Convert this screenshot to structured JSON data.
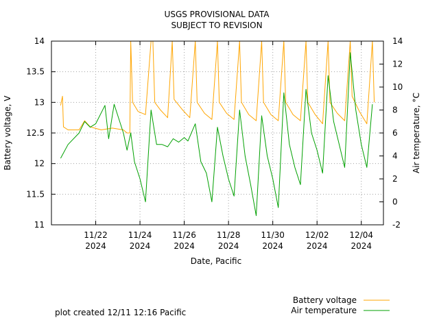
{
  "chart_data": {
    "type": "line",
    "title": "USGS PROVISIONAL DATA",
    "subtitle": "SUBJECT TO REVISION",
    "xlabel": "Date, Pacific",
    "ylabel": "Battery voltage, V",
    "y2label": "Air temperature, °C",
    "xlim": [
      "2024-11-20T00:00",
      "2024-12-05T00:00"
    ],
    "ylim": [
      11,
      14
    ],
    "y2lim": [
      -2,
      14
    ],
    "yticks": [
      "11",
      "11.5",
      "12",
      "12.5",
      "13",
      "13.5",
      "14"
    ],
    "y2ticks": [
      "-2",
      "0",
      "2",
      "4",
      "6",
      "8",
      "10",
      "12",
      "14"
    ],
    "xticks": [
      {
        "date": "2024-11-22",
        "line1": "11/22",
        "line2": "2024"
      },
      {
        "date": "2024-11-24",
        "line1": "11/24",
        "line2": "2024"
      },
      {
        "date": "2024-11-26",
        "line1": "11/26",
        "line2": "2024"
      },
      {
        "date": "2024-11-28",
        "line1": "11/28",
        "line2": "2024"
      },
      {
        "date": "2024-11-30",
        "line1": "11/30",
        "line2": "2024"
      },
      {
        "date": "2024-12-02",
        "line1": "12/02",
        "line2": "2024"
      },
      {
        "date": "2024-12-04",
        "line1": "12/04",
        "line2": "2024"
      }
    ],
    "grid": true,
    "legend_position": "bottom-right",
    "series": [
      {
        "name": "Battery voltage",
        "axis": "left",
        "color": "#ffa500",
        "points": [
          [
            "2024-11-20T10:00",
            12.95
          ],
          [
            "2024-11-20T12:00",
            13.1
          ],
          [
            "2024-11-20T13:00",
            12.6
          ],
          [
            "2024-11-20T18:00",
            12.55
          ],
          [
            "2024-11-21T06:00",
            12.55
          ],
          [
            "2024-11-21T12:00",
            12.7
          ],
          [
            "2024-11-21T18:00",
            12.6
          ],
          [
            "2024-11-22T06:00",
            12.55
          ],
          [
            "2024-11-22T18:00",
            12.58
          ],
          [
            "2024-11-23T06:00",
            12.55
          ],
          [
            "2024-11-23T10:00",
            12.5
          ],
          [
            "2024-11-23T13:00",
            12.5
          ],
          [
            "2024-11-23T14:00",
            14.0
          ],
          [
            "2024-11-23T16:00",
            13.0
          ],
          [
            "2024-11-23T22:00",
            12.85
          ],
          [
            "2024-11-24T06:00",
            12.8
          ],
          [
            "2024-11-24T12:00",
            14.0
          ],
          [
            "2024-11-24T14:00",
            14.0
          ],
          [
            "2024-11-24T16:00",
            13.0
          ],
          [
            "2024-11-24T22:00",
            12.88
          ],
          [
            "2024-11-25T06:00",
            12.75
          ],
          [
            "2024-11-25T11:00",
            14.0
          ],
          [
            "2024-11-25T13:00",
            13.05
          ],
          [
            "2024-11-25T22:00",
            12.88
          ],
          [
            "2024-11-26T06:00",
            12.75
          ],
          [
            "2024-11-26T12:00",
            14.0
          ],
          [
            "2024-11-26T14:00",
            13.0
          ],
          [
            "2024-11-26T22:00",
            12.82
          ],
          [
            "2024-11-27T06:00",
            12.72
          ],
          [
            "2024-11-27T12:00",
            14.0
          ],
          [
            "2024-11-27T14:00",
            13.0
          ],
          [
            "2024-11-27T22:00",
            12.82
          ],
          [
            "2024-11-28T06:00",
            12.72
          ],
          [
            "2024-11-28T12:00",
            14.0
          ],
          [
            "2024-11-28T14:00",
            13.0
          ],
          [
            "2024-11-28T22:00",
            12.8
          ],
          [
            "2024-11-29T06:00",
            12.7
          ],
          [
            "2024-11-29T12:00",
            14.0
          ],
          [
            "2024-11-29T14:00",
            13.0
          ],
          [
            "2024-11-29T22:00",
            12.8
          ],
          [
            "2024-11-30T06:00",
            12.7
          ],
          [
            "2024-11-30T12:00",
            14.0
          ],
          [
            "2024-11-30T14:00",
            13.0
          ],
          [
            "2024-11-30T22:00",
            12.8
          ],
          [
            "2024-12-01T06:00",
            12.7
          ],
          [
            "2024-12-01T12:00",
            14.0
          ],
          [
            "2024-12-01T14:00",
            13.0
          ],
          [
            "2024-12-01T22:00",
            12.8
          ],
          [
            "2024-12-02T06:00",
            12.65
          ],
          [
            "2024-12-02T12:00",
            14.0
          ],
          [
            "2024-12-02T14:00",
            13.0
          ],
          [
            "2024-12-02T22:00",
            12.82
          ],
          [
            "2024-12-03T06:00",
            12.7
          ],
          [
            "2024-12-03T12:00",
            14.0
          ],
          [
            "2024-12-03T14:00",
            13.1
          ],
          [
            "2024-12-03T22:00",
            12.85
          ],
          [
            "2024-12-04T06:00",
            12.65
          ],
          [
            "2024-12-04T12:00",
            14.0
          ],
          [
            "2024-12-04T14:00",
            13.0
          ]
        ]
      },
      {
        "name": "Air temperature",
        "axis": "right",
        "color": "#00a000",
        "points": [
          [
            "2024-11-20T10:00",
            3.8
          ],
          [
            "2024-11-20T18:00",
            5.0
          ],
          [
            "2024-11-21T06:00",
            6.0
          ],
          [
            "2024-11-21T12:00",
            7.0
          ],
          [
            "2024-11-21T18:00",
            6.5
          ],
          [
            "2024-11-22T00:00",
            6.8
          ],
          [
            "2024-11-22T10:00",
            8.4
          ],
          [
            "2024-11-22T14:00",
            5.5
          ],
          [
            "2024-11-22T20:00",
            8.5
          ],
          [
            "2024-11-23T06:00",
            6.0
          ],
          [
            "2024-11-23T10:00",
            4.5
          ],
          [
            "2024-11-23T14:00",
            6.0
          ],
          [
            "2024-11-23T18:00",
            3.5
          ],
          [
            "2024-11-24T00:00",
            2.0
          ],
          [
            "2024-11-24T06:00",
            0.0
          ],
          [
            "2024-11-24T12:00",
            8.0
          ],
          [
            "2024-11-24T18:00",
            5.0
          ],
          [
            "2024-11-25T00:00",
            5.0
          ],
          [
            "2024-11-25T06:00",
            4.8
          ],
          [
            "2024-11-25T12:00",
            5.5
          ],
          [
            "2024-11-25T18:00",
            5.2
          ],
          [
            "2024-11-26T00:00",
            5.6
          ],
          [
            "2024-11-26T04:00",
            5.3
          ],
          [
            "2024-11-26T12:00",
            6.8
          ],
          [
            "2024-11-26T18:00",
            3.5
          ],
          [
            "2024-11-27T00:00",
            2.5
          ],
          [
            "2024-11-27T06:00",
            0.0
          ],
          [
            "2024-11-27T12:00",
            6.5
          ],
          [
            "2024-11-27T18:00",
            4.0
          ],
          [
            "2024-11-28T00:00",
            2.0
          ],
          [
            "2024-11-28T06:00",
            0.5
          ],
          [
            "2024-11-28T12:00",
            8.0
          ],
          [
            "2024-11-28T18:00",
            4.0
          ],
          [
            "2024-11-29T00:00",
            1.5
          ],
          [
            "2024-11-29T06:00",
            -1.2
          ],
          [
            "2024-11-29T12:00",
            7.5
          ],
          [
            "2024-11-29T18:00",
            4.0
          ],
          [
            "2024-11-30T00:00",
            2.0
          ],
          [
            "2024-11-30T06:00",
            -0.5
          ],
          [
            "2024-11-30T12:00",
            9.5
          ],
          [
            "2024-11-30T18:00",
            5.0
          ],
          [
            "2024-12-01T00:00",
            3.0
          ],
          [
            "2024-12-01T06:00",
            1.5
          ],
          [
            "2024-12-01T12:00",
            9.8
          ],
          [
            "2024-12-01T18:00",
            6.0
          ],
          [
            "2024-12-02T00:00",
            4.5
          ],
          [
            "2024-12-02T06:00",
            2.5
          ],
          [
            "2024-12-02T12:00",
            11.0
          ],
          [
            "2024-12-02T18:00",
            7.0
          ],
          [
            "2024-12-03T00:00",
            5.0
          ],
          [
            "2024-12-03T06:00",
            3.0
          ],
          [
            "2024-12-03T12:00",
            13.0
          ],
          [
            "2024-12-03T18:00",
            8.0
          ],
          [
            "2024-12-04T00:00",
            5.0
          ],
          [
            "2024-12-04T06:00",
            3.0
          ],
          [
            "2024-12-04T12:00",
            8.5
          ]
        ]
      }
    ]
  },
  "footer": {
    "created_label": "plot created 12/11 12:16 Pacific"
  }
}
